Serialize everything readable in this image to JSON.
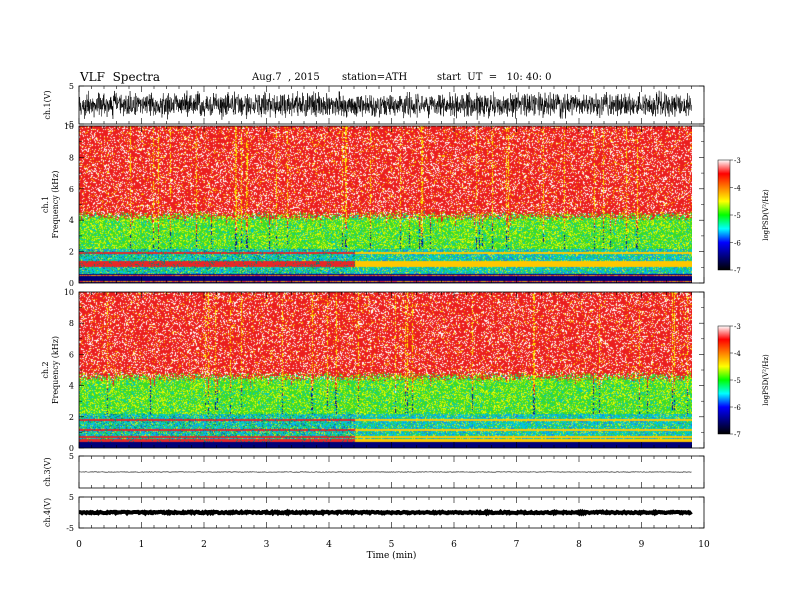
{
  "header": {
    "title": "VLF  Spectra",
    "date": "Aug.7  , 2015",
    "station": "station=ATH",
    "start": "start  UT  =   10: 40: 0"
  },
  "colors": {
    "background": "#ffffff",
    "axis": "#000000",
    "spectrogram_high": "#ee2020",
    "spectrogram_mid": "#ffff00",
    "spectrogram_low": "#00d000",
    "spectrogram_floor": "#00c8ff",
    "colorbar_stops": [
      "#ffffff",
      "#ff0000",
      "#ff8000",
      "#ffff00",
      "#00ff00",
      "#00ffff",
      "#0000ff",
      "#000080",
      "#000000"
    ]
  },
  "chart_data": [
    {
      "type": "line",
      "panel": "ch1-waveform",
      "ylabel": "ch.1(V)",
      "ylim": [
        -5,
        5
      ],
      "yticks": [
        "5",
        "-5"
      ],
      "xlim": [
        0,
        10
      ],
      "amplitude": 2.6,
      "note_data": "dense noise waveform spanning 0–9.8 min"
    },
    {
      "type": "heatmap",
      "panel": "ch1-spectrogram",
      "ylabel": "ch.1\nFrequency  (kHz)",
      "ylabel_line1": "ch.1",
      "ylabel_line2": "Frequency  (kHz)",
      "ylim": [
        0,
        10
      ],
      "yticks": [
        "0",
        "2",
        "4",
        "6",
        "8",
        "10"
      ],
      "xlim": [
        0,
        10
      ],
      "data_end": 9.8,
      "band_levels_kHz": {
        "red_above": 4.3,
        "green_band": [
          2.2,
          4.3
        ],
        "cyan_band": [
          0.6,
          2.2
        ],
        "lines_below": 0.6
      },
      "step_time_min": 4.4,
      "colorbar": {
        "label": "logPSD(V²/Hz)",
        "ticks": [
          "-3",
          "-4",
          "-5",
          "-6",
          "-7"
        ],
        "range": [
          -7,
          -3
        ]
      }
    },
    {
      "type": "heatmap",
      "panel": "ch2-spectrogram",
      "ylabel_line1": "ch.2",
      "ylabel_line2": "Frequency  (kHz)",
      "ylim": [
        0,
        10
      ],
      "yticks": [
        "0",
        "2",
        "4",
        "6",
        "8",
        "10"
      ],
      "xlim": [
        0,
        10
      ],
      "data_end": 9.8,
      "band_levels_kHz": {
        "red_above": 4.6,
        "green_band": [
          2.2,
          4.6
        ],
        "cyan_band": [
          0.4,
          2.2
        ],
        "lines_below": 0.4
      },
      "step_time_min": 4.4,
      "colorbar": {
        "label": "logPSD(V²/Hz)",
        "ticks": [
          "-3",
          "-4",
          "-5",
          "-6",
          "-7"
        ],
        "range": [
          -7,
          -3
        ]
      }
    },
    {
      "type": "line",
      "panel": "ch3-waveform",
      "ylabel": "ch.3(V)",
      "ylim": [
        -5,
        5
      ],
      "yticks": [
        "5"
      ],
      "xlim": [
        0,
        10
      ],
      "amplitude": 0.08,
      "note_data": "flat trace"
    },
    {
      "type": "line",
      "panel": "ch4-waveform",
      "ylabel": "ch.4(V)",
      "ylim": [
        -5,
        5
      ],
      "yticks": [
        "5",
        "-5"
      ],
      "xlim": [
        0,
        10
      ],
      "amplitude": 0.25,
      "note_data": "thick flat trace"
    }
  ],
  "xaxis": {
    "label": "Time  (min)",
    "ticks": [
      "0",
      "1",
      "2",
      "3",
      "4",
      "5",
      "6",
      "7",
      "8",
      "9",
      "10"
    ]
  }
}
